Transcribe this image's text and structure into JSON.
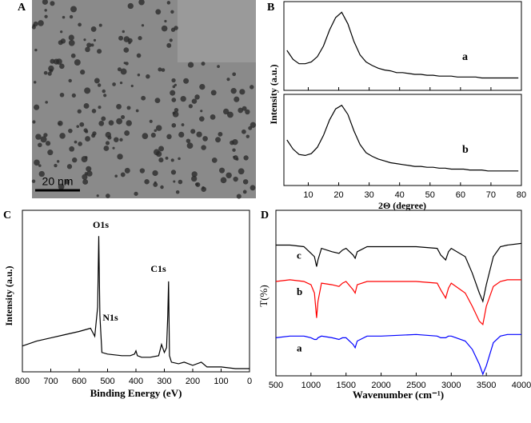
{
  "panel_labels": [
    "A",
    "B",
    "C",
    "D"
  ],
  "image": {
    "scale_bar": "20 nm"
  },
  "chart_data": [
    {
      "type": "line",
      "y_label": "Intensity (a.u.)",
      "x_label": "2Θ (degree)",
      "xlim": [
        2,
        80
      ],
      "xticks": [
        10,
        20,
        30,
        40,
        50,
        60,
        70,
        80
      ],
      "ylim": [
        0,
        1
      ],
      "x": [
        3,
        5,
        7,
        9,
        11,
        13,
        15,
        17,
        19,
        21,
        23,
        25,
        27,
        29,
        31,
        33,
        35,
        37,
        39,
        41,
        43,
        45,
        47,
        49,
        51,
        53,
        55,
        57,
        59,
        61,
        63,
        65,
        67,
        69,
        71,
        73,
        75,
        77,
        79
      ],
      "series": [
        {
          "name": "a",
          "color": "#000000",
          "values": [
            0.45,
            0.35,
            0.3,
            0.3,
            0.32,
            0.38,
            0.5,
            0.68,
            0.82,
            0.88,
            0.75,
            0.55,
            0.4,
            0.32,
            0.28,
            0.25,
            0.23,
            0.22,
            0.2,
            0.2,
            0.19,
            0.18,
            0.18,
            0.17,
            0.17,
            0.16,
            0.16,
            0.16,
            0.15,
            0.15,
            0.15,
            0.15,
            0.14,
            0.14,
            0.14,
            0.14,
            0.14,
            0.14,
            0.14
          ]
        },
        {
          "name": "b",
          "color": "#000000",
          "values": [
            0.5,
            0.4,
            0.34,
            0.33,
            0.35,
            0.42,
            0.55,
            0.72,
            0.84,
            0.88,
            0.78,
            0.6,
            0.45,
            0.36,
            0.32,
            0.29,
            0.27,
            0.25,
            0.24,
            0.23,
            0.22,
            0.21,
            0.21,
            0.2,
            0.2,
            0.19,
            0.19,
            0.18,
            0.18,
            0.18,
            0.17,
            0.17,
            0.17,
            0.16,
            0.16,
            0.16,
            0.16,
            0.16,
            0.16
          ]
        }
      ]
    },
    {
      "type": "line",
      "y_label": "Intensity (a.u.)",
      "x_label": "Binding Energy (eV)",
      "xlim": [
        800,
        0
      ],
      "xticks": [
        800,
        700,
        600,
        500,
        400,
        300,
        200,
        100,
        0
      ],
      "ylim": [
        0,
        1
      ],
      "annotations": [
        "O1s",
        "N1s",
        "C1s"
      ],
      "x": [
        800,
        750,
        700,
        650,
        600,
        580,
        560,
        545,
        535,
        531,
        527,
        520,
        500,
        450,
        420,
        405,
        400,
        395,
        380,
        350,
        320,
        310,
        300,
        292,
        288,
        285,
        282,
        275,
        250,
        230,
        200,
        170,
        150,
        100,
        50,
        10,
        0
      ],
      "series": [
        {
          "color": "#000000",
          "values": [
            0.16,
            0.19,
            0.21,
            0.23,
            0.25,
            0.26,
            0.27,
            0.22,
            0.4,
            0.84,
            0.35,
            0.12,
            0.11,
            0.1,
            0.1,
            0.11,
            0.13,
            0.1,
            0.09,
            0.09,
            0.1,
            0.17,
            0.12,
            0.15,
            0.35,
            0.56,
            0.1,
            0.06,
            0.05,
            0.06,
            0.04,
            0.06,
            0.03,
            0.03,
            0.02,
            0.02,
            0.02
          ]
        }
      ]
    },
    {
      "type": "line",
      "y_label": "T(%)",
      "x_label": "Wavenumber (cm⁻¹)",
      "xlim": [
        500,
        4000
      ],
      "xticks": [
        500,
        1000,
        1500,
        2000,
        2500,
        3000,
        3500,
        4000
      ],
      "ylim": [
        0,
        1
      ],
      "x": [
        500,
        700,
        900,
        1000,
        1050,
        1080,
        1100,
        1150,
        1300,
        1400,
        1450,
        1500,
        1600,
        1630,
        1660,
        1800,
        2000,
        2500,
        2800,
        2850,
        2920,
        2960,
        3000,
        3200,
        3300,
        3400,
        3450,
        3500,
        3600,
        3700,
        3800,
        4000
      ],
      "series": [
        {
          "name": "c",
          "color": "#000000",
          "values": [
            0.79,
            0.79,
            0.78,
            0.74,
            0.72,
            0.66,
            0.7,
            0.77,
            0.75,
            0.74,
            0.76,
            0.77,
            0.73,
            0.71,
            0.75,
            0.78,
            0.78,
            0.78,
            0.77,
            0.73,
            0.7,
            0.75,
            0.77,
            0.72,
            0.62,
            0.5,
            0.45,
            0.55,
            0.72,
            0.78,
            0.79,
            0.8
          ]
        },
        {
          "name": "b",
          "color": "#ff0000",
          "values": [
            0.57,
            0.58,
            0.57,
            0.55,
            0.5,
            0.35,
            0.45,
            0.56,
            0.55,
            0.54,
            0.56,
            0.57,
            0.52,
            0.5,
            0.55,
            0.57,
            0.57,
            0.57,
            0.56,
            0.52,
            0.47,
            0.53,
            0.56,
            0.5,
            0.42,
            0.33,
            0.31,
            0.42,
            0.54,
            0.57,
            0.58,
            0.58
          ]
        },
        {
          "name": "a",
          "color": "#0000ff",
          "values": [
            0.23,
            0.24,
            0.24,
            0.23,
            0.22,
            0.22,
            0.23,
            0.24,
            0.23,
            0.22,
            0.23,
            0.23,
            0.19,
            0.17,
            0.21,
            0.24,
            0.24,
            0.25,
            0.24,
            0.23,
            0.23,
            0.24,
            0.24,
            0.21,
            0.16,
            0.07,
            0.01,
            0.06,
            0.2,
            0.24,
            0.25,
            0.25
          ]
        }
      ]
    }
  ]
}
